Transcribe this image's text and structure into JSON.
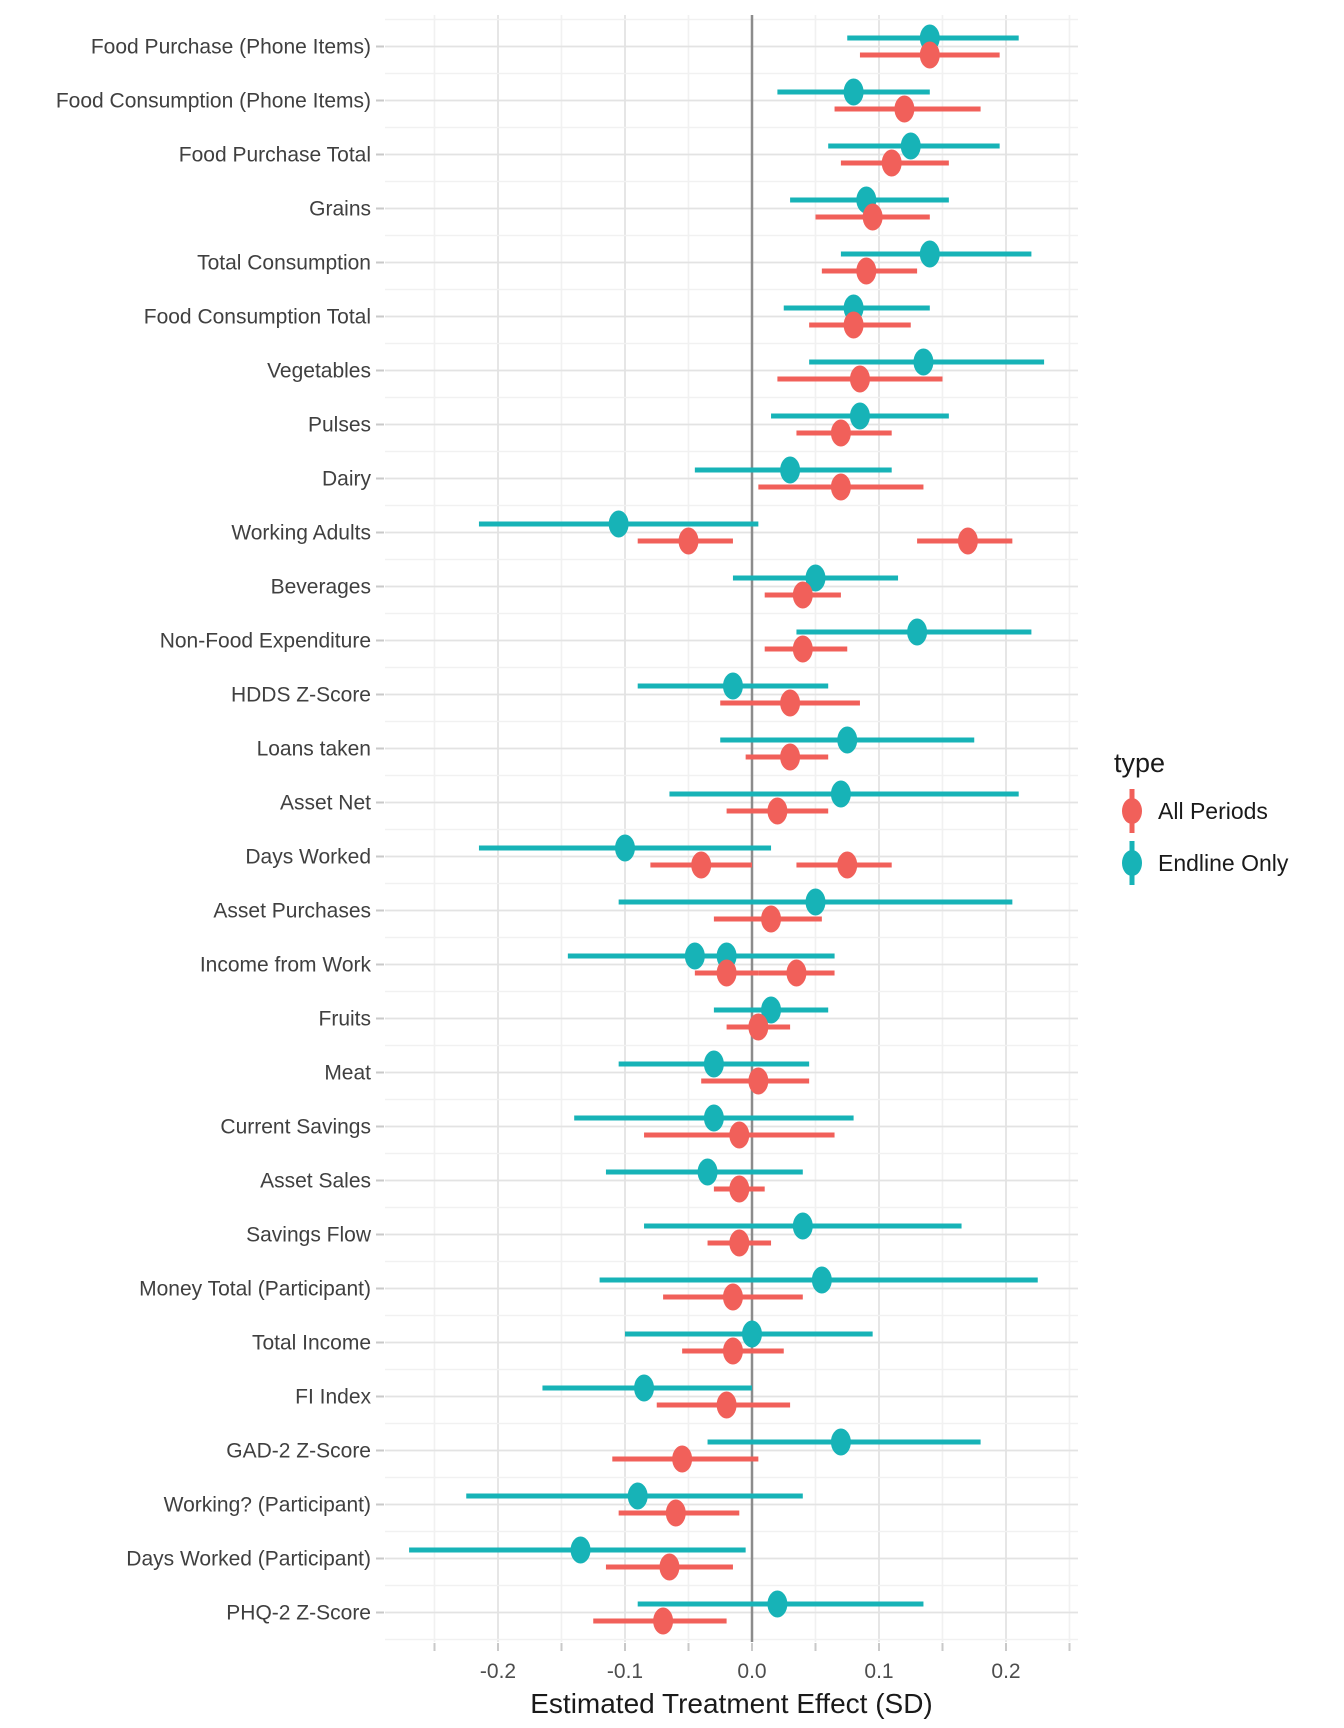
{
  "chart_data": {
    "type": "scatter",
    "subtype": "forest-dot-whisker",
    "xlabel": "Estimated Treatment Effect (SD)",
    "xlim": [
      -0.289,
      0.257
    ],
    "x_ticks": [
      {
        "v": -0.2,
        "label": "-0.2"
      },
      {
        "v": -0.1,
        "label": "-0.1"
      },
      {
        "v": 0.0,
        "label": "0.0"
      },
      {
        "v": 0.1,
        "label": "0.1"
      },
      {
        "v": 0.2,
        "label": "0.2"
      }
    ],
    "x_minor_ticks": [
      -0.25,
      -0.15,
      -0.05,
      0.05,
      0.15,
      0.25
    ],
    "zero_line": 0,
    "grid": "on",
    "legend": {
      "title": "type",
      "position": "right",
      "entries": [
        {
          "label": "All Periods",
          "color": "#F1605A"
        },
        {
          "label": "Endline Only",
          "color": "#17B3B7"
        }
      ]
    },
    "rows": [
      {
        "label": "Food Purchase (Phone Items)",
        "segments": [
          {
            "type": "Endline Only",
            "est": 0.14,
            "lo": 0.075,
            "hi": 0.21
          },
          {
            "type": "All Periods",
            "est": 0.14,
            "lo": 0.085,
            "hi": 0.195
          }
        ]
      },
      {
        "label": "Food Consumption (Phone Items)",
        "segments": [
          {
            "type": "Endline Only",
            "est": 0.08,
            "lo": 0.02,
            "hi": 0.14
          },
          {
            "type": "All Periods",
            "est": 0.12,
            "lo": 0.065,
            "hi": 0.18
          }
        ]
      },
      {
        "label": "Food Purchase Total",
        "segments": [
          {
            "type": "Endline Only",
            "est": 0.125,
            "lo": 0.06,
            "hi": 0.195
          },
          {
            "type": "All Periods",
            "est": 0.11,
            "lo": 0.07,
            "hi": 0.155
          }
        ]
      },
      {
        "label": "Grains",
        "segments": [
          {
            "type": "Endline Only",
            "est": 0.09,
            "lo": 0.03,
            "hi": 0.155
          },
          {
            "type": "All Periods",
            "est": 0.095,
            "lo": 0.05,
            "hi": 0.14
          }
        ]
      },
      {
        "label": "Total Consumption",
        "segments": [
          {
            "type": "Endline Only",
            "est": 0.14,
            "lo": 0.07,
            "hi": 0.22
          },
          {
            "type": "All Periods",
            "est": 0.09,
            "lo": 0.055,
            "hi": 0.13
          }
        ]
      },
      {
        "label": "Food Consumption Total",
        "segments": [
          {
            "type": "Endline Only",
            "est": 0.08,
            "lo": 0.025,
            "hi": 0.14
          },
          {
            "type": "All Periods",
            "est": 0.08,
            "lo": 0.045,
            "hi": 0.125
          }
        ]
      },
      {
        "label": "Vegetables",
        "segments": [
          {
            "type": "Endline Only",
            "est": 0.135,
            "lo": 0.045,
            "hi": 0.23
          },
          {
            "type": "All Periods",
            "est": 0.085,
            "lo": 0.02,
            "hi": 0.15
          }
        ]
      },
      {
        "label": "Pulses",
        "segments": [
          {
            "type": "Endline Only",
            "est": 0.085,
            "lo": 0.015,
            "hi": 0.155
          },
          {
            "type": "All Periods",
            "est": 0.07,
            "lo": 0.035,
            "hi": 0.11
          }
        ]
      },
      {
        "label": "Dairy",
        "segments": [
          {
            "type": "Endline Only",
            "est": 0.03,
            "lo": -0.045,
            "hi": 0.11
          },
          {
            "type": "All Periods",
            "est": 0.07,
            "lo": 0.005,
            "hi": 0.135
          }
        ]
      },
      {
        "label": "Working Adults",
        "segments": [
          {
            "type": "Endline Only",
            "est": -0.105,
            "lo": -0.215,
            "hi": 0.005
          },
          {
            "type": "All Periods",
            "est": -0.05,
            "lo": -0.09,
            "hi": -0.015
          },
          {
            "type": "All Periods",
            "est": 0.17,
            "lo": 0.13,
            "hi": 0.205
          }
        ]
      },
      {
        "label": "Beverages",
        "segments": [
          {
            "type": "Endline Only",
            "est": 0.05,
            "lo": -0.015,
            "hi": 0.115
          },
          {
            "type": "All Periods",
            "est": 0.04,
            "lo": 0.01,
            "hi": 0.07
          }
        ]
      },
      {
        "label": "Non-Food Expenditure",
        "segments": [
          {
            "type": "Endline Only",
            "est": 0.13,
            "lo": 0.035,
            "hi": 0.22
          },
          {
            "type": "All Periods",
            "est": 0.04,
            "lo": 0.01,
            "hi": 0.075
          }
        ]
      },
      {
        "label": "HDDS Z-Score",
        "segments": [
          {
            "type": "Endline Only",
            "est": -0.015,
            "lo": -0.09,
            "hi": 0.06
          },
          {
            "type": "All Periods",
            "est": 0.03,
            "lo": -0.025,
            "hi": 0.085
          }
        ]
      },
      {
        "label": "Loans taken",
        "segments": [
          {
            "type": "Endline Only",
            "est": 0.075,
            "lo": -0.025,
            "hi": 0.175
          },
          {
            "type": "All Periods",
            "est": 0.03,
            "lo": -0.005,
            "hi": 0.06
          }
        ]
      },
      {
        "label": "Asset Net",
        "segments": [
          {
            "type": "Endline Only",
            "est": 0.07,
            "lo": -0.065,
            "hi": 0.21
          },
          {
            "type": "All Periods",
            "est": 0.02,
            "lo": -0.02,
            "hi": 0.06
          }
        ]
      },
      {
        "label": "Days Worked",
        "segments": [
          {
            "type": "Endline Only",
            "est": -0.1,
            "lo": -0.215,
            "hi": 0.015
          },
          {
            "type": "All Periods",
            "est": -0.04,
            "lo": -0.08,
            "hi": 0.0
          },
          {
            "type": "All Periods",
            "est": 0.075,
            "lo": 0.035,
            "hi": 0.11
          }
        ]
      },
      {
        "label": "Asset Purchases",
        "segments": [
          {
            "type": "Endline Only",
            "est": 0.05,
            "lo": -0.105,
            "hi": 0.205
          },
          {
            "type": "All Periods",
            "est": 0.015,
            "lo": -0.03,
            "hi": 0.055
          }
        ]
      },
      {
        "label": "Income from Work",
        "segments": [
          {
            "type": "Endline Only",
            "est": -0.045,
            "lo": -0.145,
            "hi": 0.065
          },
          {
            "type": "Endline Only",
            "est": -0.02,
            "lo": -0.1,
            "hi": 0.065
          },
          {
            "type": "All Periods",
            "est": -0.02,
            "lo": -0.045,
            "hi": 0.005
          },
          {
            "type": "All Periods",
            "est": 0.035,
            "lo": 0.005,
            "hi": 0.065
          }
        ]
      },
      {
        "label": "Fruits",
        "segments": [
          {
            "type": "Endline Only",
            "est": 0.015,
            "lo": -0.03,
            "hi": 0.06
          },
          {
            "type": "All Periods",
            "est": 0.005,
            "lo": -0.02,
            "hi": 0.03
          }
        ]
      },
      {
        "label": "Meat",
        "segments": [
          {
            "type": "Endline Only",
            "est": -0.03,
            "lo": -0.105,
            "hi": 0.045
          },
          {
            "type": "All Periods",
            "est": 0.005,
            "lo": -0.04,
            "hi": 0.045
          }
        ]
      },
      {
        "label": "Current Savings",
        "segments": [
          {
            "type": "Endline Only",
            "est": -0.03,
            "lo": -0.14,
            "hi": 0.08
          },
          {
            "type": "All Periods",
            "est": -0.01,
            "lo": -0.085,
            "hi": 0.065
          }
        ]
      },
      {
        "label": "Asset Sales",
        "segments": [
          {
            "type": "Endline Only",
            "est": -0.035,
            "lo": -0.115,
            "hi": 0.04
          },
          {
            "type": "All Periods",
            "est": -0.01,
            "lo": -0.03,
            "hi": 0.01
          }
        ]
      },
      {
        "label": "Savings Flow",
        "segments": [
          {
            "type": "Endline Only",
            "est": 0.04,
            "lo": -0.085,
            "hi": 0.165
          },
          {
            "type": "All Periods",
            "est": -0.01,
            "lo": -0.035,
            "hi": 0.015
          }
        ]
      },
      {
        "label": "Money Total (Participant)",
        "segments": [
          {
            "type": "Endline Only",
            "est": 0.055,
            "lo": -0.12,
            "hi": 0.225
          },
          {
            "type": "All Periods",
            "est": -0.015,
            "lo": -0.07,
            "hi": 0.04
          }
        ]
      },
      {
        "label": "Total Income",
        "segments": [
          {
            "type": "Endline Only",
            "est": 0.0,
            "lo": -0.1,
            "hi": 0.095
          },
          {
            "type": "All Periods",
            "est": -0.015,
            "lo": -0.055,
            "hi": 0.025
          }
        ]
      },
      {
        "label": "FI Index",
        "segments": [
          {
            "type": "Endline Only",
            "est": -0.085,
            "lo": -0.165,
            "hi": 0.0
          },
          {
            "type": "All Periods",
            "est": -0.02,
            "lo": -0.075,
            "hi": 0.03
          }
        ]
      },
      {
        "label": "GAD-2 Z-Score",
        "segments": [
          {
            "type": "Endline Only",
            "est": 0.07,
            "lo": -0.035,
            "hi": 0.18
          },
          {
            "type": "All Periods",
            "est": -0.055,
            "lo": -0.11,
            "hi": 0.005
          }
        ]
      },
      {
        "label": "Working? (Participant)",
        "segments": [
          {
            "type": "Endline Only",
            "est": -0.09,
            "lo": -0.225,
            "hi": 0.04
          },
          {
            "type": "All Periods",
            "est": -0.06,
            "lo": -0.105,
            "hi": -0.01
          }
        ]
      },
      {
        "label": "Days Worked (Participant)",
        "segments": [
          {
            "type": "Endline Only",
            "est": -0.135,
            "lo": -0.27,
            "hi": -0.005
          },
          {
            "type": "All Periods",
            "est": -0.065,
            "lo": -0.115,
            "hi": -0.015
          }
        ]
      },
      {
        "label": "PHQ-2 Z-Score",
        "segments": [
          {
            "type": "Endline Only",
            "est": 0.02,
            "lo": -0.09,
            "hi": 0.135
          },
          {
            "type": "All Periods",
            "est": -0.07,
            "lo": -0.125,
            "hi": -0.02
          }
        ]
      }
    ]
  },
  "style_colors": {
    "grid_major": "#e3e3e3",
    "grid_minor": "#f1f1f1",
    "zero_line": "#8c8c8c",
    "tick_mark": "#c9c9c9",
    "tick_label": "#4d4d4d",
    "category_label": "#404040"
  }
}
